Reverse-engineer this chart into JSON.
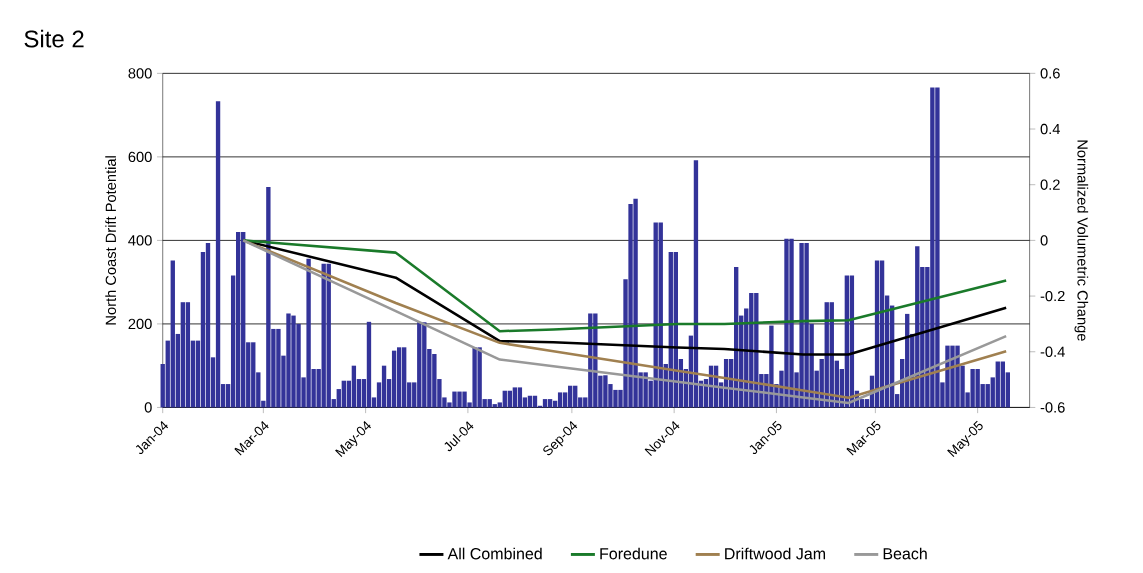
{
  "chart_data": {
    "type": "bar",
    "title": "Site 2",
    "ylabel": "North Coast Drift Potential",
    "y2label": "Normalized Volumetric Change",
    "xlim": [
      "2004-01-01",
      "2005-06-01"
    ],
    "xticks": [
      {
        "value": "2004-01-01",
        "label": "Jan-04"
      },
      {
        "value": "2004-03-01",
        "label": "Mar-04"
      },
      {
        "value": "2004-05-01",
        "label": "May-04"
      },
      {
        "value": "2004-07-01",
        "label": "Jul-04"
      },
      {
        "value": "2004-09-01",
        "label": "Sep-04"
      },
      {
        "value": "2004-11-01",
        "label": "Nov-04"
      },
      {
        "value": "2005-01-01",
        "label": "Jan-05"
      },
      {
        "value": "2005-03-01",
        "label": "Mar-05"
      },
      {
        "value": "2005-05-01",
        "label": "May-05"
      }
    ],
    "ylim": [
      0,
      800
    ],
    "yticks": [
      0,
      200,
      400,
      600,
      800
    ],
    "y2lim": [
      -0.6,
      0.6
    ],
    "y2ticks": [
      -0.6,
      -0.4,
      -0.2,
      0,
      0.2,
      0.4,
      0.6
    ],
    "grid": "y",
    "legend": "bottom",
    "marker": "none",
    "line_style": "solid",
    "series": [
      {
        "color": "#333399",
        "x": [
          "2004-01-01",
          "2004-01-04",
          "2004-01-07",
          "2004-01-10",
          "2004-01-13",
          "2004-01-16",
          "2004-01-19",
          "2004-01-22",
          "2004-01-25",
          "2004-01-28",
          "2004-01-31",
          "2004-02-03",
          "2004-02-06",
          "2004-02-09",
          "2004-02-12",
          "2004-02-15",
          "2004-02-18",
          "2004-02-21",
          "2004-02-24",
          "2004-02-27",
          "2004-03-01",
          "2004-03-04",
          "2004-03-07",
          "2004-03-10",
          "2004-03-13",
          "2004-03-16",
          "2004-03-19",
          "2004-03-22",
          "2004-03-25",
          "2004-03-28",
          "2004-03-31",
          "2004-04-03",
          "2004-04-06",
          "2004-04-09",
          "2004-04-12",
          "2004-04-15",
          "2004-04-18",
          "2004-04-21",
          "2004-04-24",
          "2004-04-27",
          "2004-04-30",
          "2004-05-03",
          "2004-05-06",
          "2004-05-09",
          "2004-05-12",
          "2004-05-15",
          "2004-05-18",
          "2004-05-21",
          "2004-05-24",
          "2004-05-27",
          "2004-05-30",
          "2004-06-02",
          "2004-06-05",
          "2004-06-08",
          "2004-06-11",
          "2004-06-14",
          "2004-06-17",
          "2004-06-20",
          "2004-06-23",
          "2004-06-26",
          "2004-06-29",
          "2004-07-02",
          "2004-07-05",
          "2004-07-08",
          "2004-07-11",
          "2004-07-14",
          "2004-07-17",
          "2004-07-20",
          "2004-07-23",
          "2004-07-26",
          "2004-07-29",
          "2004-08-01",
          "2004-08-04",
          "2004-08-07",
          "2004-08-10",
          "2004-08-13",
          "2004-08-16",
          "2004-08-19",
          "2004-08-22",
          "2004-08-25",
          "2004-08-28",
          "2004-08-31",
          "2004-09-03",
          "2004-09-06",
          "2004-09-09",
          "2004-09-12",
          "2004-09-15",
          "2004-09-18",
          "2004-09-21",
          "2004-09-24",
          "2004-09-27",
          "2004-09-30",
          "2004-10-03",
          "2004-10-06",
          "2004-10-09",
          "2004-10-12",
          "2004-10-15",
          "2004-10-18",
          "2004-10-21",
          "2004-10-24",
          "2004-10-27",
          "2004-10-30",
          "2004-11-02",
          "2004-11-05",
          "2004-11-08",
          "2004-11-11",
          "2004-11-14",
          "2004-11-17",
          "2004-11-20",
          "2004-11-23",
          "2004-11-26",
          "2004-11-29",
          "2004-12-02",
          "2004-12-05",
          "2004-12-08",
          "2004-12-11",
          "2004-12-14",
          "2004-12-17",
          "2004-12-20",
          "2004-12-23",
          "2004-12-26",
          "2004-12-29",
          "2005-01-01",
          "2005-01-04",
          "2005-01-07",
          "2005-01-10",
          "2005-01-13",
          "2005-01-16",
          "2005-01-19",
          "2005-01-22",
          "2005-01-25",
          "2005-01-28",
          "2005-01-31",
          "2005-02-03",
          "2005-02-06",
          "2005-02-09",
          "2005-02-12",
          "2005-02-15",
          "2005-02-18",
          "2005-02-21",
          "2005-02-24",
          "2005-02-27",
          "2005-03-02",
          "2005-03-05",
          "2005-03-08",
          "2005-03-11",
          "2005-03-14",
          "2005-03-17",
          "2005-03-20",
          "2005-03-23",
          "2005-03-26",
          "2005-03-29",
          "2005-04-01",
          "2005-04-04",
          "2005-04-07",
          "2005-04-10",
          "2005-04-13",
          "2005-04-16",
          "2005-04-19",
          "2005-04-22",
          "2005-04-25",
          "2005-04-28",
          "2005-05-01",
          "2005-05-04",
          "2005-05-07",
          "2005-05-10",
          "2005-05-13",
          "2005-05-16",
          "2005-05-19"
        ],
        "values": [
          104,
          160,
          352,
          176,
          252,
          252,
          160,
          160,
          372,
          394,
          120,
          733,
          56,
          56,
          316,
          420,
          420,
          156,
          156,
          84,
          16,
          528,
          188,
          188,
          124,
          225,
          220,
          200,
          72,
          356,
          92,
          92,
          344,
          344,
          20,
          44,
          64,
          64,
          100,
          68,
          68,
          205,
          24,
          60,
          100,
          68,
          136,
          144,
          144,
          60,
          60,
          204,
          204,
          140,
          128,
          68,
          24,
          12,
          38,
          38,
          38,
          12,
          144,
          144,
          20,
          20,
          8,
          12,
          40,
          40,
          48,
          48,
          24,
          28,
          28,
          4,
          20,
          20,
          16,
          36,
          36,
          52,
          52,
          24,
          24,
          225,
          225,
          76,
          77,
          56,
          42,
          42,
          307,
          487,
          500,
          84,
          84,
          64,
          443,
          443,
          104,
          372,
          372,
          116,
          92,
          172,
          592,
          64,
          68,
          100,
          100,
          60,
          116,
          116,
          336,
          220,
          237,
          274,
          274,
          80,
          80,
          196,
          56,
          88,
          404,
          404,
          84,
          394,
          394,
          200,
          88,
          116,
          252,
          252,
          112,
          92,
          316,
          316,
          40,
          20,
          20,
          76,
          352,
          352,
          268,
          244,
          32,
          116,
          224,
          176,
          386,
          336,
          336,
          766,
          766,
          60,
          148,
          148,
          148,
          100,
          36,
          92,
          92,
          56,
          56,
          72,
          110,
          110,
          84
        ]
      },
      {
        "name": "All Combined",
        "type": "line",
        "axis": "y2",
        "color": "#000000",
        "x": [
          "2004-02-18",
          "2004-05-19",
          "2004-07-20",
          "2004-08-21",
          "2004-11-03",
          "2004-12-01",
          "2005-01-17",
          "2005-02-13",
          "2005-05-18"
        ],
        "values": [
          0,
          -0.134,
          -0.362,
          -0.366,
          -0.385,
          -0.39,
          -0.41,
          -0.41,
          -0.242
        ]
      },
      {
        "name": "Foredune",
        "type": "line",
        "axis": "y2",
        "color": "#1a7a2a",
        "x": [
          "2004-02-18",
          "2004-05-19",
          "2004-07-20",
          "2004-08-21",
          "2004-11-03",
          "2004-12-01",
          "2005-01-17",
          "2005-02-13",
          "2005-05-18"
        ],
        "values": [
          0,
          -0.044,
          -0.326,
          -0.32,
          -0.3,
          -0.3,
          -0.29,
          -0.287,
          -0.144
        ]
      },
      {
        "name": "Driftwood Jam",
        "type": "line",
        "axis": "y2",
        "color": "#a08050",
        "x": [
          "2004-02-18",
          "2004-05-19",
          "2004-07-20",
          "2004-08-21",
          "2004-11-03",
          "2004-12-01",
          "2005-01-17",
          "2005-02-13",
          "2005-05-18"
        ],
        "values": [
          0,
          -0.225,
          -0.368,
          -0.398,
          -0.468,
          -0.494,
          -0.539,
          -0.565,
          -0.398
        ]
      },
      {
        "name": "Beach",
        "type": "line",
        "axis": "y2",
        "color": "#999999",
        "x": [
          "2004-02-18",
          "2004-05-19",
          "2004-07-20",
          "2004-08-21",
          "2004-11-03",
          "2004-12-01",
          "2005-01-17",
          "2005-02-13",
          "2005-05-18"
        ],
        "values": [
          0,
          -0.254,
          -0.428,
          -0.452,
          -0.508,
          -0.529,
          -0.564,
          -0.584,
          -0.344
        ]
      }
    ]
  }
}
